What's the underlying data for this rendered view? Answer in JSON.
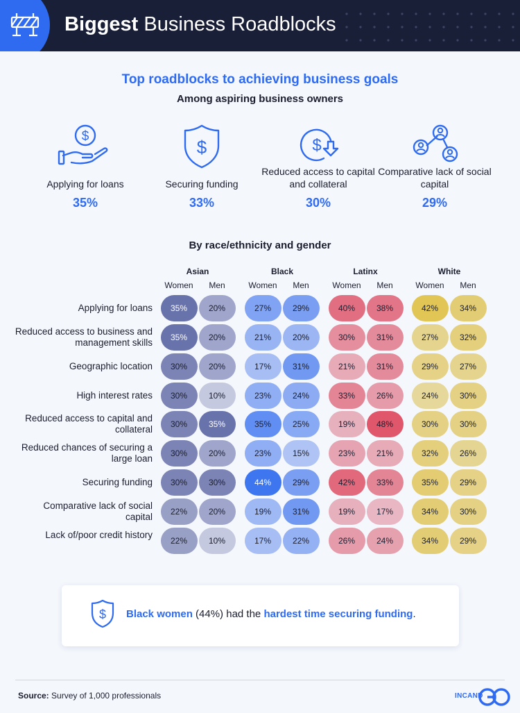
{
  "header": {
    "title_bold": "Biggest",
    "title_rest": "Business Roadblocks"
  },
  "chart_data": [
    {
      "type": "bar",
      "title": "Top roadblocks to achieving business goals",
      "subtitle": "Among aspiring business owners",
      "categories": [
        "Applying for loans",
        "Securing funding",
        "Reduced access to capital and collateral",
        "Comparative lack of social capital"
      ],
      "values": [
        35,
        33,
        30,
        29
      ],
      "value_labels": [
        "35%",
        "33%",
        "30%",
        "29%"
      ],
      "icons": [
        "hand-coin-icon",
        "shield-dollar-icon",
        "coin-down-arrow-icon",
        "people-network-icon"
      ]
    },
    {
      "type": "heatmap",
      "title": "By race/ethnicity and gender",
      "groups": [
        "Asian",
        "Black",
        "Latinx",
        "White"
      ],
      "genders": [
        "Women",
        "Men"
      ],
      "rows": [
        "Applying for loans",
        "Reduced access to business and management skills",
        "Geographic location",
        "High interest rates",
        "Reduced access to capital and collateral",
        "Reduced chances of securing a large loan",
        "Securing funding",
        "Comparative lack of social capital",
        "Lack of/poor credit history"
      ],
      "values": [
        [
          35,
          20,
          27,
          29,
          40,
          38,
          42,
          34
        ],
        [
          35,
          20,
          21,
          20,
          30,
          31,
          27,
          32
        ],
        [
          30,
          20,
          17,
          31,
          21,
          31,
          29,
          27
        ],
        [
          30,
          10,
          23,
          24,
          33,
          26,
          24,
          30
        ],
        [
          30,
          35,
          35,
          25,
          19,
          48,
          30,
          30
        ],
        [
          30,
          20,
          23,
          15,
          23,
          21,
          32,
          26
        ],
        [
          30,
          30,
          44,
          29,
          42,
          33,
          35,
          29
        ],
        [
          22,
          20,
          19,
          31,
          19,
          17,
          34,
          30
        ],
        [
          22,
          10,
          17,
          22,
          26,
          24,
          34,
          29
        ]
      ],
      "group_colors": [
        "#3a4690",
        "#2f6bf0",
        "#e0566a",
        "#e0c040"
      ]
    }
  ],
  "callout": {
    "icon": "shield-dollar-icon",
    "part1": "Black women",
    "part2": " (44%) had the ",
    "part3": "hardest time securing funding",
    "part4": "."
  },
  "footer": {
    "source_label": "Source:",
    "source_text": " Survey of 1,000 professionals",
    "logo_text": "INCAND"
  }
}
